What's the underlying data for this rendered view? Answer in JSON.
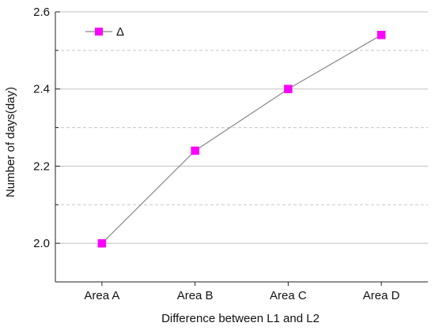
{
  "chart_data": {
    "type": "line",
    "categories": [
      "Area A",
      "Area B",
      "Area C",
      "Area D"
    ],
    "series": [
      {
        "name": "Δ",
        "values": [
          2.0,
          2.24,
          2.4,
          2.54
        ],
        "color": "#ff00ff",
        "line_color": "#888888"
      }
    ],
    "title": "",
    "xlabel": "Difference between L1 and L2",
    "ylabel": "Number of days(day)",
    "ylim": [
      1.9,
      2.6
    ],
    "yticks": [
      2.0,
      2.2,
      2.4,
      2.6
    ],
    "ytick_labels": [
      "2.0",
      "2.2",
      "2.4",
      "2.6"
    ],
    "minor_grid_values": [
      2.1,
      2.3,
      2.5
    ],
    "grid": true,
    "legend_position": "top-left",
    "colors": {
      "major_grid": "#c0c0c0",
      "minor_grid": "#c8c8c8",
      "axis": "#222222"
    }
  }
}
